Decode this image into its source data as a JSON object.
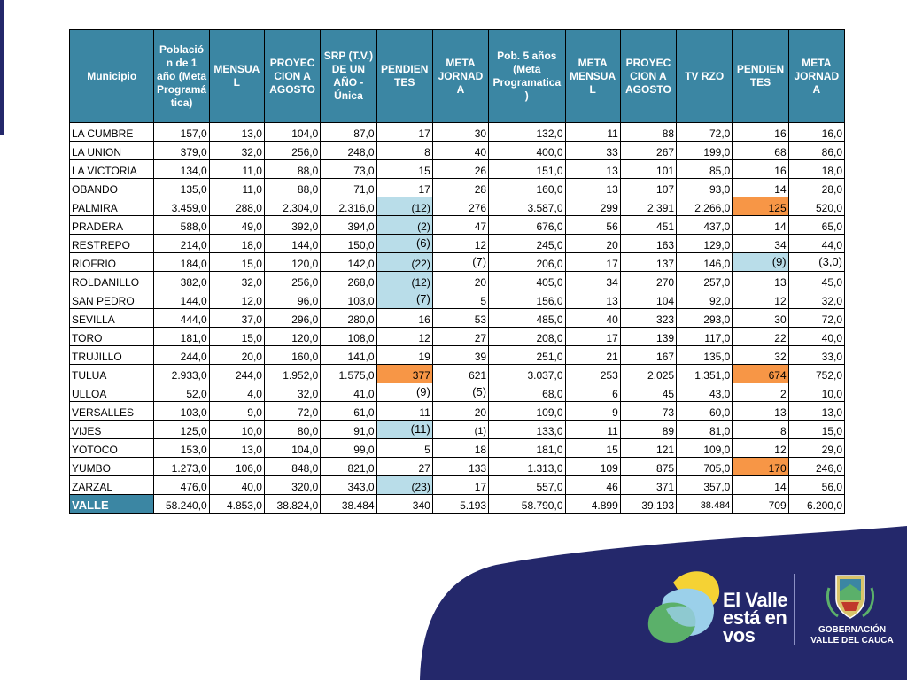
{
  "headers": [
    "Municipio",
    "Población de 1 año (Meta Programá tica)",
    "MENSUA L",
    "PROYEC CION A AGOSTO",
    "SRP (T.V.) DE UN AÑO - Única",
    "PENDIEN TES",
    "META JORNAD A",
    "Pob. 5 años (Meta Programatica )",
    "META MENSUA L",
    "PROYEC CION A AGOSTO",
    "TV RZO",
    "PENDIEN TES",
    "META JORNAD A"
  ],
  "rows": [
    [
      "LA CUMBRE",
      "157,0",
      "13,0",
      "104,0",
      "87,0",
      "17",
      "30",
      "132,0",
      "11",
      "88",
      "72,0",
      "16",
      "16,0"
    ],
    [
      "LA UNION",
      "379,0",
      "32,0",
      "256,0",
      "248,0",
      "8",
      "40",
      "400,0",
      "33",
      "267",
      "199,0",
      "68",
      "86,0"
    ],
    [
      "LA VICTORIA",
      "134,0",
      "11,0",
      "88,0",
      "73,0",
      "15",
      "26",
      "151,0",
      "13",
      "101",
      "85,0",
      "16",
      "18,0"
    ],
    [
      "OBANDO",
      "135,0",
      "11,0",
      "88,0",
      "71,0",
      "17",
      "28",
      "160,0",
      "13",
      "107",
      "93,0",
      "14",
      "28,0"
    ],
    [
      "PALMIRA",
      "3.459,0",
      "288,0",
      "2.304,0",
      "2.316,0",
      "(12)",
      "276",
      "3.587,0",
      "299",
      "2.391",
      "2.266,0",
      "125",
      "520,0"
    ],
    [
      "PRADERA",
      "588,0",
      "49,0",
      "392,0",
      "394,0",
      "(2)",
      "47",
      "676,0",
      "56",
      "451",
      "437,0",
      "14",
      "65,0"
    ],
    [
      "RESTREPO",
      "214,0",
      "18,0",
      "144,0",
      "150,0",
      "(6)",
      "12",
      "245,0",
      "20",
      "163",
      "129,0",
      "34",
      "44,0"
    ],
    [
      "RIOFRIO",
      "184,0",
      "15,0",
      "120,0",
      "142,0",
      "(22)",
      "(7)",
      "206,0",
      "17",
      "137",
      "146,0",
      "(9)",
      "(3,0)"
    ],
    [
      "ROLDANILLO",
      "382,0",
      "32,0",
      "256,0",
      "268,0",
      "(12)",
      "20",
      "405,0",
      "34",
      "270",
      "257,0",
      "13",
      "45,0"
    ],
    [
      "SAN PEDRO",
      "144,0",
      "12,0",
      "96,0",
      "103,0",
      "(7)",
      "5",
      "156,0",
      "13",
      "104",
      "92,0",
      "12",
      "32,0"
    ],
    [
      "SEVILLA",
      "444,0",
      "37,0",
      "296,0",
      "280,0",
      "16",
      "53",
      "485,0",
      "40",
      "323",
      "293,0",
      "30",
      "72,0"
    ],
    [
      "TORO",
      "181,0",
      "15,0",
      "120,0",
      "108,0",
      "12",
      "27",
      "208,0",
      "17",
      "139",
      "117,0",
      "22",
      "40,0"
    ],
    [
      "TRUJILLO",
      "244,0",
      "20,0",
      "160,0",
      "141,0",
      "19",
      "39",
      "251,0",
      "21",
      "167",
      "135,0",
      "32",
      "33,0"
    ],
    [
      "TULUA",
      "2.933,0",
      "244,0",
      "1.952,0",
      "1.575,0",
      "377",
      "621",
      "3.037,0",
      "253",
      "2.025",
      "1.351,0",
      "674",
      "752,0"
    ],
    [
      "ULLOA",
      "52,0",
      "4,0",
      "32,0",
      "41,0",
      "(9)",
      "(5)",
      "68,0",
      "6",
      "45",
      "43,0",
      "2",
      "10,0"
    ],
    [
      "VERSALLES",
      "103,0",
      "9,0",
      "72,0",
      "61,0",
      "11",
      "20",
      "109,0",
      "9",
      "73",
      "60,0",
      "13",
      "13,0"
    ],
    [
      "VIJES",
      "125,0",
      "10,0",
      "80,0",
      "91,0",
      "(11)",
      "(1)",
      "133,0",
      "11",
      "89",
      "81,0",
      "8",
      "15,0"
    ],
    [
      "YOTOCO",
      "153,0",
      "13,0",
      "104,0",
      "99,0",
      "5",
      "18",
      "181,0",
      "15",
      "121",
      "109,0",
      "12",
      "29,0"
    ],
    [
      "YUMBO",
      "1.273,0",
      "106,0",
      "848,0",
      "821,0",
      "27",
      "133",
      "1.313,0",
      "109",
      "875",
      "705,0",
      "170",
      "246,0"
    ],
    [
      "ZARZAL",
      "476,0",
      "40,0",
      "320,0",
      "343,0",
      "(23)",
      "17",
      "557,0",
      "46",
      "371",
      "357,0",
      "14",
      "56,0"
    ]
  ],
  "total": [
    "VALLE",
    "58.240,0",
    "4.853,0",
    "38.824,0",
    "38.484",
    "340",
    "5.193",
    "58.790,0",
    "4.899",
    "39.193",
    "38.484",
    "709",
    "6.200,0"
  ],
  "colors": {
    "header_bg": "#3b86a3",
    "highlight_blue": "#b9dde9",
    "highlight_orange": "#f79646",
    "brand_navy": "#24286b"
  },
  "branding": {
    "logo_line1": "El Valle",
    "logo_line2": "está en",
    "logo_line3": "vos",
    "gov_line1": "GOBERNACIÓN",
    "gov_line2": "VALLE DEL CAUCA"
  }
}
